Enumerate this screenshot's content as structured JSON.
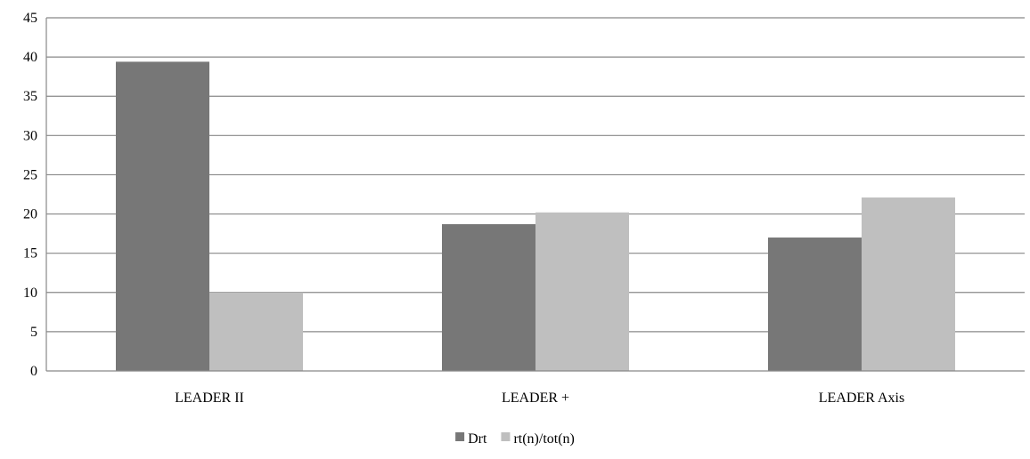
{
  "chart_data": {
    "type": "bar",
    "title": "",
    "xlabel": "",
    "ylabel": "",
    "categories": [
      "LEADER II",
      "LEADER +",
      "LEADER Axis"
    ],
    "series": [
      {
        "name": "Drt",
        "values": [
          39.4,
          18.7,
          17.0
        ],
        "color": "#777777"
      },
      {
        "name": "rt(n)/tot(n)",
        "values": [
          10.0,
          20.2,
          22.1
        ],
        "color": "#bfbfbf"
      }
    ],
    "ylim": [
      0,
      45
    ],
    "yticks": [
      0,
      5,
      10,
      15,
      20,
      25,
      30,
      35,
      40,
      45
    ],
    "grid": true,
    "legend_position": "bottom"
  }
}
